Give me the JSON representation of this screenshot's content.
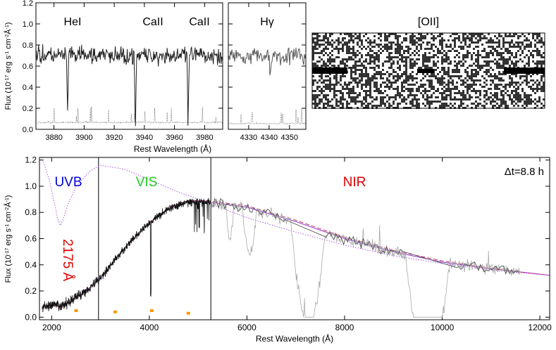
{
  "chart_data": [
    {
      "type": "line",
      "panel": "top-left",
      "ylabel": "Flux (10",
      "ylabel_exp1": "-17",
      "ylabel_mid": " erg s",
      "ylabel_exp2": "-1",
      "ylabel_mid2": " cm",
      "ylabel_exp3": "-2",
      "ylabel_mid3": "Å",
      "ylabel_exp4": "-1",
      "ylabel_end": ")",
      "xlim": [
        3868,
        3992
      ],
      "ylim": [
        0.0,
        1.2
      ],
      "xticks": [
        3880,
        3900,
        3920,
        3940,
        3960,
        3980
      ],
      "yticks": [
        0.0,
        0.2,
        0.4,
        0.6,
        0.8,
        1.0,
        1.2
      ],
      "ytick_labels": [
        "0.0",
        "0.2",
        "0.4",
        "0.6",
        "0.8",
        "1.0",
        "1.2"
      ],
      "annotations": [
        {
          "text": "HeI",
          "x": 3889
        },
        {
          "text": "CaII",
          "x": 3934
        },
        {
          "text": "CaII",
          "x": 3969
        }
      ],
      "series": [
        {
          "role": "spectrum",
          "continuum": 0.7,
          "noise": 0.07,
          "color": "#222222",
          "absorption": [
            {
              "x": 3889,
              "depth": 0.52,
              "width": 0.8
            },
            {
              "x": 3934,
              "depth": 0.68,
              "width": 0.8
            },
            {
              "x": 3969,
              "depth": 0.68,
              "width": 0.8
            }
          ]
        },
        {
          "role": "error",
          "level": 0.06,
          "color": "#555555",
          "dotted": true
        }
      ]
    },
    {
      "type": "line",
      "panel": "top-middle",
      "xlim": [
        4320,
        4358
      ],
      "ylim": [
        0.0,
        1.2
      ],
      "xticks": [
        4330,
        4340,
        4350
      ],
      "yticks": [
        0.0,
        0.2,
        0.4,
        0.6,
        0.8,
        1.0,
        1.2
      ],
      "annotations": [
        {
          "text": "Hγ",
          "x": 4340
        }
      ],
      "series": [
        {
          "role": "spectrum",
          "continuum": 0.7,
          "noise": 0.07,
          "color": "#555555",
          "absorption": [
            {
              "x": 4340.5,
              "depth": 0.35,
              "width": 0.4
            }
          ]
        },
        {
          "role": "error",
          "level": 0.05,
          "color": "#555555",
          "dotted": true
        }
      ]
    },
    {
      "type": "heatmap",
      "panel": "top-right",
      "title": "[OII]",
      "description_2d": "noisy 2D spectrum with continuum trace at both ends"
    },
    {
      "type": "line",
      "panel": "bottom",
      "xlabel": "Rest Wavelength (Å)",
      "xlim": [
        1750,
        12200
      ],
      "ylim": [
        -0.02,
        1.22
      ],
      "xticks": [
        2000,
        4000,
        6000,
        8000,
        10000,
        12000
      ],
      "xtick_labels": [
        "2000",
        "4000",
        "6000",
        "8000",
        "10000",
        "12000"
      ],
      "yticks": [
        0.0,
        0.2,
        0.4,
        0.6,
        0.8,
        1.0,
        1.2
      ],
      "ytick_labels": [
        "0.0",
        "0.2",
        "0.4",
        "0.6",
        "0.8",
        "1.0",
        "1.2"
      ],
      "arm_boundaries": [
        2960,
        5260
      ],
      "arm_labels": [
        {
          "text": "UVB",
          "color": "#0000dd",
          "x": 2200,
          "y": 1.08
        },
        {
          "text": "VIS",
          "color": "#22cc22",
          "x": 3700,
          "y": 1.08
        },
        {
          "text": "NIR",
          "color": "#dd0000",
          "x": 7800,
          "y": 1.08
        }
      ],
      "corner_label": "Δt=8.8 h",
      "bump_label": "2175 Å",
      "bump_label_color": "#dd0000",
      "series": [
        {
          "name": "model",
          "color": "#8833cc",
          "dotted": false,
          "x": [
            1800,
            2000,
            2100,
            2175,
            2250,
            2400,
            2700,
            3000,
            3300,
            3600,
            4000,
            4400,
            4800,
            5200,
            6000,
            7000,
            8000,
            9000,
            10000,
            11000,
            12200
          ],
          "y": [
            0.08,
            0.09,
            0.09,
            0.08,
            0.09,
            0.13,
            0.2,
            0.3,
            0.44,
            0.57,
            0.72,
            0.83,
            0.88,
            0.88,
            0.84,
            0.73,
            0.6,
            0.5,
            0.42,
            0.37,
            0.32
          ]
        },
        {
          "name": "model-dashed",
          "color": "#cc3366",
          "dotted": false,
          "dashed": true,
          "x": [
            1800,
            2000,
            2100,
            2175,
            2250,
            2400,
            2700,
            3000,
            3300,
            3600,
            4000,
            4400,
            4800,
            5200,
            6000,
            7000,
            8000,
            9000,
            10000,
            11000,
            12200
          ],
          "y": [
            0.08,
            0.09,
            0.09,
            0.06,
            0.09,
            0.13,
            0.2,
            0.3,
            0.44,
            0.57,
            0.72,
            0.84,
            0.89,
            0.89,
            0.85,
            0.74,
            0.61,
            0.51,
            0.43,
            0.37,
            0.32
          ]
        },
        {
          "name": "unextinguished",
          "color": "#aa55ee",
          "dotted": true,
          "x": [
            1800,
            1950,
            2050,
            2120,
            2175,
            2230,
            2320,
            2500,
            2800,
            3000,
            3500,
            4000,
            4500,
            5000,
            6000,
            7000,
            8000,
            9000,
            10000,
            11000,
            12200
          ],
          "y": [
            1.22,
            1.05,
            0.88,
            0.76,
            0.7,
            0.74,
            0.85,
            1.0,
            1.12,
            1.16,
            1.13,
            1.05,
            0.97,
            0.9,
            0.76,
            0.65,
            0.55,
            0.47,
            0.41,
            0.36,
            0.32
          ]
        },
        {
          "name": "X-shooter",
          "role": "spectrum",
          "color": "#111111",
          "x_range": [
            1800,
            5260
          ]
        },
        {
          "name": "X-shooter-telluric",
          "role": "telluric",
          "color": "#bbbbbb",
          "x_range": [
            5260,
            11600
          ]
        },
        {
          "name": "photometry",
          "role": "points",
          "color": "#ff9900",
          "x": [
            2500,
            3300,
            4050,
            4800
          ],
          "y": [
            0.05,
            0.04,
            0.05,
            0.03
          ]
        }
      ]
    }
  ],
  "labels": {
    "top_xlabel": "Rest Wavelength (Å)",
    "bottom_xlabel": "Rest Wavelength (Å)"
  },
  "colors": {
    "axis": "#000000",
    "uvb": "#0000dd",
    "vis": "#22cc22",
    "nir": "#dd0000",
    "photometry": "#ff9900"
  }
}
